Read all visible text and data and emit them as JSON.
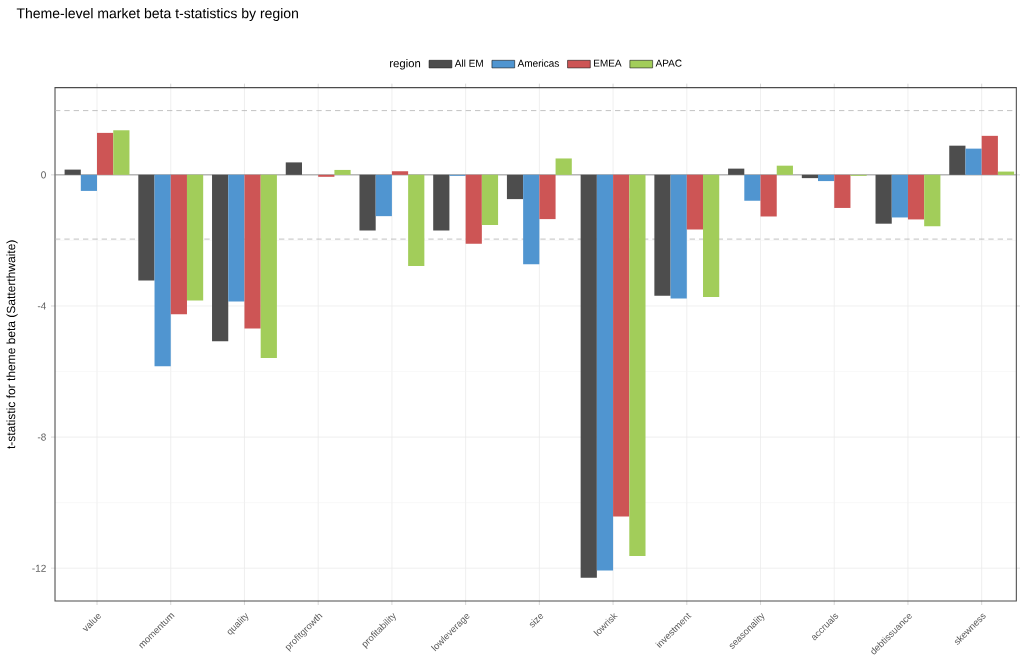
{
  "chart_data": {
    "type": "bar",
    "title": "Theme-level market beta t-statistics by region",
    "ylabel": "t-statistic for theme beta (Satterthwaite)",
    "legend_title": "region",
    "legend": "top",
    "grid": true,
    "categories": [
      "value",
      "momentum",
      "quality",
      "profitgrowth",
      "profitability",
      "lowleverage",
      "size",
      "lowrisk",
      "investment",
      "seasonality",
      "accruals",
      "debtissuance",
      "skewness"
    ],
    "series": [
      {
        "name": "All EM",
        "color": "#4d4d4d",
        "values": [
          0.16,
          -3.22,
          -5.08,
          0.38,
          -1.7,
          -1.7,
          -0.74,
          -12.29,
          -3.69,
          0.19,
          -0.1,
          -1.49,
          0.89
        ]
      },
      {
        "name": "Americas",
        "color": "#5095d0",
        "values": [
          -0.49,
          -5.84,
          -3.86,
          0.0,
          -1.26,
          -0.03,
          -2.73,
          -12.07,
          -3.77,
          -0.79,
          -0.19,
          -1.3,
          0.8
        ]
      },
      {
        "name": "EMEA",
        "color": "#cd5555",
        "values": [
          1.28,
          -4.25,
          -4.69,
          -0.06,
          0.11,
          -2.1,
          -1.35,
          -10.42,
          -1.67,
          -1.27,
          -1.01,
          -1.36,
          1.19
        ]
      },
      {
        "name": "APAC",
        "color": "#a2cd5a",
        "values": [
          1.36,
          -3.83,
          -5.59,
          0.15,
          -2.78,
          -1.53,
          0.5,
          -11.63,
          -3.73,
          0.28,
          -0.03,
          -1.57,
          0.1
        ]
      }
    ],
    "ylim": [
      -13.0,
      2.66
    ],
    "yticks": [
      -12,
      -8,
      -4,
      0
    ],
    "ref_lines": [
      {
        "axis": "y",
        "value": 1.96,
        "color": "#b3b3b3",
        "line_style": "dashed"
      },
      {
        "axis": "y",
        "value": -1.96,
        "color": "#b3b3b3",
        "line_style": "dashed"
      },
      {
        "axis": "y",
        "value": 0,
        "color": "#808080",
        "line_style": "solid"
      }
    ]
  }
}
